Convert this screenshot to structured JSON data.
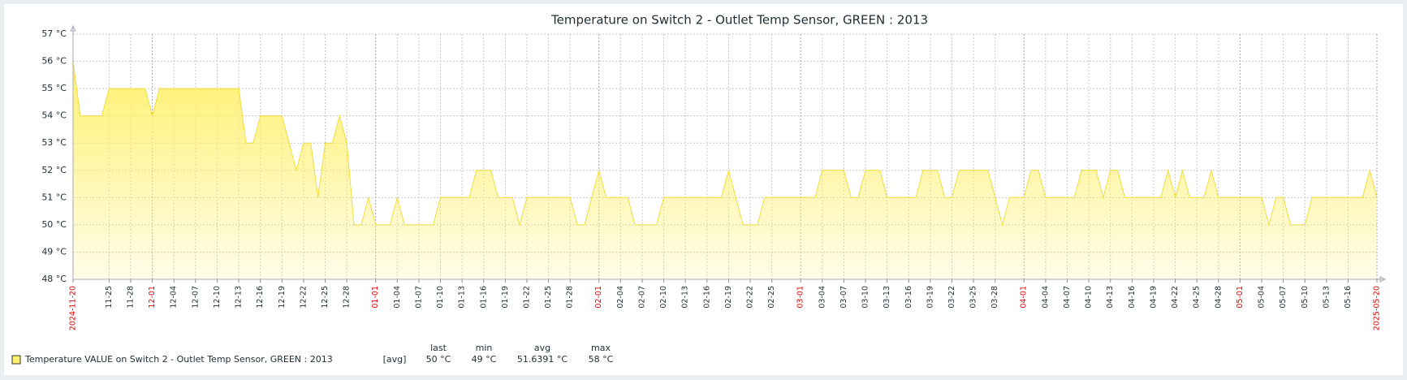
{
  "chart_data": {
    "type": "line",
    "title": "Temperature on Switch 2 - Outlet Temp Sensor, GREEN : 2013",
    "xlim": [
      "2024-11-20",
      "2025-05-20"
    ],
    "xticks": [
      {
        "value": "2024-11-20",
        "label": "2024-11-20"
      },
      {
        "value": "2024-11-25",
        "label": "11-25"
      },
      {
        "value": "2024-11-28",
        "label": "11-28"
      },
      {
        "value": "2024-12-01",
        "label": "12-01"
      },
      {
        "value": "2024-12-04",
        "label": "12-04"
      },
      {
        "value": "2024-12-07",
        "label": "12-07"
      },
      {
        "value": "2024-12-10",
        "label": "12-10"
      },
      {
        "value": "2024-12-13",
        "label": "12-13"
      },
      {
        "value": "2024-12-16",
        "label": "12-16"
      },
      {
        "value": "2024-12-19",
        "label": "12-19"
      },
      {
        "value": "2024-12-22",
        "label": "12-22"
      },
      {
        "value": "2024-12-25",
        "label": "12-25"
      },
      {
        "value": "2024-12-28",
        "label": "12-28"
      },
      {
        "value": "2025-01-01",
        "label": "01-01"
      },
      {
        "value": "2025-01-04",
        "label": "01-04"
      },
      {
        "value": "2025-01-07",
        "label": "01-07"
      },
      {
        "value": "2025-01-10",
        "label": "01-10"
      },
      {
        "value": "2025-01-13",
        "label": "01-13"
      },
      {
        "value": "2025-01-16",
        "label": "01-16"
      },
      {
        "value": "2025-01-19",
        "label": "01-19"
      },
      {
        "value": "2025-01-22",
        "label": "01-22"
      },
      {
        "value": "2025-01-25",
        "label": "01-25"
      },
      {
        "value": "2025-01-28",
        "label": "01-28"
      },
      {
        "value": "2025-02-01",
        "label": "02-01"
      },
      {
        "value": "2025-02-04",
        "label": "02-04"
      },
      {
        "value": "2025-02-07",
        "label": "02-07"
      },
      {
        "value": "2025-02-10",
        "label": "02-10"
      },
      {
        "value": "2025-02-13",
        "label": "02-13"
      },
      {
        "value": "2025-02-16",
        "label": "02-16"
      },
      {
        "value": "2025-02-19",
        "label": "02-19"
      },
      {
        "value": "2025-02-22",
        "label": "02-22"
      },
      {
        "value": "2025-02-25",
        "label": "02-25"
      },
      {
        "value": "2025-03-01",
        "label": "03-01"
      },
      {
        "value": "2025-03-04",
        "label": "03-04"
      },
      {
        "value": "2025-03-07",
        "label": "03-07"
      },
      {
        "value": "2025-03-10",
        "label": "03-10"
      },
      {
        "value": "2025-03-13",
        "label": "03-13"
      },
      {
        "value": "2025-03-16",
        "label": "03-16"
      },
      {
        "value": "2025-03-19",
        "label": "03-19"
      },
      {
        "value": "2025-03-22",
        "label": "03-22"
      },
      {
        "value": "2025-03-25",
        "label": "03-25"
      },
      {
        "value": "2025-03-28",
        "label": "03-28"
      },
      {
        "value": "2025-04-01",
        "label": "04-01"
      },
      {
        "value": "2025-04-04",
        "label": "04-04"
      },
      {
        "value": "2025-04-07",
        "label": "04-07"
      },
      {
        "value": "2025-04-10",
        "label": "04-10"
      },
      {
        "value": "2025-04-13",
        "label": "04-13"
      },
      {
        "value": "2025-04-16",
        "label": "04-16"
      },
      {
        "value": "2025-04-19",
        "label": "04-19"
      },
      {
        "value": "2025-04-22",
        "label": "04-22"
      },
      {
        "value": "2025-04-25",
        "label": "04-25"
      },
      {
        "value": "2025-04-28",
        "label": "04-28"
      },
      {
        "value": "2025-05-01",
        "label": "05-01"
      },
      {
        "value": "2025-05-04",
        "label": "05-04"
      },
      {
        "value": "2025-05-07",
        "label": "05-07"
      },
      {
        "value": "2025-05-10",
        "label": "05-10"
      },
      {
        "value": "2025-05-13",
        "label": "05-13"
      },
      {
        "value": "2025-05-16",
        "label": "05-16"
      },
      {
        "value": "2025-05-20",
        "label": "2025-05-20"
      }
    ],
    "highlight_color": "#e00000",
    "ylim": [
      48,
      57
    ],
    "yticks": [
      {
        "value": 48,
        "label": "48 °C"
      },
      {
        "value": 49,
        "label": "49 °C"
      },
      {
        "value": 50,
        "label": "50 °C"
      },
      {
        "value": 51,
        "label": "51 °C"
      },
      {
        "value": 52,
        "label": "52 °C"
      },
      {
        "value": 53,
        "label": "53 °C"
      },
      {
        "value": 54,
        "label": "54 °C"
      },
      {
        "value": 55,
        "label": "55 °C"
      },
      {
        "value": 56,
        "label": "56 °C"
      },
      {
        "value": 57,
        "label": "57 °C"
      }
    ],
    "grid": true,
    "series": [
      {
        "name": "Temperature VALUE on Switch 2 - Outlet Temp Sensor, GREEN : 2013",
        "function": "[avg]",
        "color": "#f2dc3c",
        "fill": "#fff06e",
        "x": [
          "2024-11-20",
          "2024-11-21",
          "2024-11-22",
          "2024-11-23",
          "2024-11-24",
          "2024-11-25",
          "2024-11-26",
          "2024-11-27",
          "2024-11-28",
          "2024-11-29",
          "2024-11-30",
          "2024-12-01",
          "2024-12-02",
          "2024-12-03",
          "2024-12-04",
          "2024-12-05",
          "2024-12-06",
          "2024-12-07",
          "2024-12-08",
          "2024-12-09",
          "2024-12-10",
          "2024-12-11",
          "2024-12-12",
          "2024-12-13",
          "2024-12-14",
          "2024-12-15",
          "2024-12-16",
          "2024-12-17",
          "2024-12-18",
          "2024-12-19",
          "2024-12-20",
          "2024-12-21",
          "2024-12-22",
          "2024-12-23",
          "2024-12-24",
          "2024-12-25",
          "2024-12-26",
          "2024-12-27",
          "2024-12-28",
          "2024-12-29",
          "2024-12-30",
          "2024-12-31",
          "2025-01-01",
          "2025-01-02",
          "2025-01-03",
          "2025-01-04",
          "2025-01-05",
          "2025-01-06",
          "2025-01-07",
          "2025-01-08",
          "2025-01-09",
          "2025-01-10",
          "2025-01-11",
          "2025-01-12",
          "2025-01-13",
          "2025-01-14",
          "2025-01-15",
          "2025-01-16",
          "2025-01-17",
          "2025-01-18",
          "2025-01-19",
          "2025-01-20",
          "2025-01-21",
          "2025-01-22",
          "2025-01-23",
          "2025-01-24",
          "2025-01-25",
          "2025-01-26",
          "2025-01-27",
          "2025-01-28",
          "2025-01-29",
          "2025-01-30",
          "2025-01-31",
          "2025-02-01",
          "2025-02-02",
          "2025-02-03",
          "2025-02-04",
          "2025-02-05",
          "2025-02-06",
          "2025-02-07",
          "2025-02-08",
          "2025-02-09",
          "2025-02-10",
          "2025-02-11",
          "2025-02-12",
          "2025-02-13",
          "2025-02-14",
          "2025-02-15",
          "2025-02-16",
          "2025-02-17",
          "2025-02-18",
          "2025-02-19",
          "2025-02-20",
          "2025-02-21",
          "2025-02-22",
          "2025-02-23",
          "2025-02-24",
          "2025-02-25",
          "2025-02-26",
          "2025-02-27",
          "2025-02-28",
          "2025-03-01",
          "2025-03-02",
          "2025-03-03",
          "2025-03-04",
          "2025-03-05",
          "2025-03-06",
          "2025-03-07",
          "2025-03-08",
          "2025-03-09",
          "2025-03-10",
          "2025-03-11",
          "2025-03-12",
          "2025-03-13",
          "2025-03-14",
          "2025-03-15",
          "2025-03-16",
          "2025-03-17",
          "2025-03-18",
          "2025-03-19",
          "2025-03-20",
          "2025-03-21",
          "2025-03-22",
          "2025-03-23",
          "2025-03-24",
          "2025-03-25",
          "2025-03-26",
          "2025-03-27",
          "2025-03-28",
          "2025-03-29",
          "2025-03-30",
          "2025-03-31",
          "2025-04-01",
          "2025-04-02",
          "2025-04-03",
          "2025-04-04",
          "2025-04-05",
          "2025-04-06",
          "2025-04-07",
          "2025-04-08",
          "2025-04-09",
          "2025-04-10",
          "2025-04-11",
          "2025-04-12",
          "2025-04-13",
          "2025-04-14",
          "2025-04-15",
          "2025-04-16",
          "2025-04-17",
          "2025-04-18",
          "2025-04-19",
          "2025-04-20",
          "2025-04-21",
          "2025-04-22",
          "2025-04-23",
          "2025-04-24",
          "2025-04-25",
          "2025-04-26",
          "2025-04-27",
          "2025-04-28",
          "2025-04-29",
          "2025-04-30",
          "2025-05-01",
          "2025-05-02",
          "2025-05-03",
          "2025-05-04",
          "2025-05-05",
          "2025-05-06",
          "2025-05-07",
          "2025-05-08",
          "2025-05-09",
          "2025-05-10",
          "2025-05-11",
          "2025-05-12",
          "2025-05-13",
          "2025-05-14",
          "2025-05-15",
          "2025-05-16",
          "2025-05-17",
          "2025-05-18",
          "2025-05-19",
          "2025-05-20"
        ],
        "values": [
          56,
          54,
          54,
          54,
          54,
          55,
          55,
          55,
          55,
          55,
          55,
          54,
          55,
          55,
          55,
          55,
          55,
          55,
          55,
          55,
          55,
          55,
          55,
          55,
          53,
          53,
          54,
          54,
          54,
          54,
          53,
          52,
          53,
          53,
          51,
          53,
          53,
          54,
          53,
          50,
          50,
          51,
          50,
          50,
          50,
          51,
          50,
          50,
          50,
          50,
          50,
          51,
          51,
          51,
          51,
          51,
          52,
          52,
          52,
          51,
          51,
          51,
          50,
          51,
          51,
          51,
          51,
          51,
          51,
          51,
          50,
          50,
          51,
          52,
          51,
          51,
          51,
          51,
          50,
          50,
          50,
          50,
          51,
          51,
          51,
          51,
          51,
          51,
          51,
          51,
          51,
          52,
          51,
          50,
          50,
          50,
          51,
          51,
          51,
          51,
          51,
          51,
          51,
          51,
          52,
          52,
          52,
          52,
          51,
          51,
          52,
          52,
          52,
          51,
          51,
          51,
          51,
          51,
          52,
          52,
          52,
          51,
          51,
          52,
          52,
          52,
          52,
          52,
          51,
          50,
          51,
          51,
          51,
          52,
          52,
          51,
          51,
          51,
          51,
          51,
          52,
          52,
          52,
          51,
          52,
          52,
          51,
          51,
          51,
          51,
          51,
          51,
          52,
          51,
          52,
          51,
          51,
          51,
          52,
          51,
          51,
          51,
          51,
          51,
          51,
          51,
          50,
          51,
          51,
          50,
          50,
          50,
          51,
          51,
          51,
          51,
          51,
          51,
          51,
          51,
          52,
          51
        ]
      }
    ],
    "legend_stats": {
      "headers": [
        "last",
        "min",
        "avg",
        "max"
      ],
      "values": [
        "50 °C",
        "49 °C",
        "51.6391 °C",
        "58 °C"
      ]
    }
  }
}
